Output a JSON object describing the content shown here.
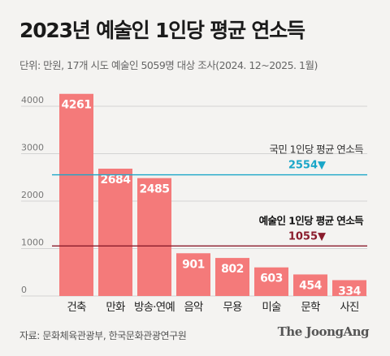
{
  "header": {
    "title": "2023년 예술인 1인당 평균 연소득",
    "subtitle": "단위: 만원, 17개 시도 예술인 5059명 대상 조사(2024. 12~2025. 1월)"
  },
  "footer": {
    "source": "자료: 문화체육관광부, 한국문화관광연구원",
    "brand": "The JoongAng"
  },
  "chart_data": {
    "type": "bar",
    "categories": [
      "건축",
      "만화",
      "방송·연예",
      "음악",
      "무용",
      "미술",
      "문학",
      "사진"
    ],
    "values": [
      4261,
      2684,
      2485,
      901,
      802,
      603,
      454,
      334
    ],
    "ylim": [
      0,
      4000
    ],
    "y_ticks": [
      0,
      1000,
      2000,
      3000,
      4000
    ],
    "grid": true,
    "reference_lines": [
      {
        "label": "국민 1인당 평균 연소득",
        "value": 2554,
        "value_label": "2554▼",
        "color": "#1aa6c8"
      },
      {
        "label": "예술인 1인당 평균 연소득",
        "value": 1055,
        "value_label": "1055▼",
        "color": "#8a1c2c"
      }
    ],
    "bar_color": "#f47a7a",
    "bar_label_color": "#ffffff"
  }
}
